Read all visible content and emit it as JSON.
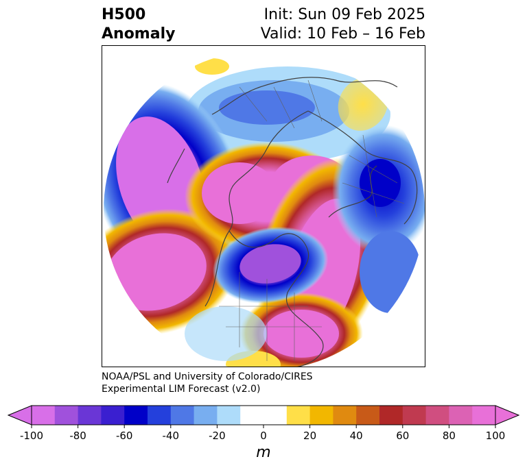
{
  "header": {
    "title_line1": "H500",
    "title_line2": "Anomaly",
    "init_text": "Init: Sun 09 Feb 2025",
    "valid_text": "Valid: 10 Feb – 16 Feb"
  },
  "credit": {
    "line1": "NOAA/PSL and University of Colorado/CIRES",
    "line2": "Experimental LIM Forecast (v2.0)"
  },
  "colorbar": {
    "unit": "m",
    "ticks": [
      "-100",
      "-80",
      "-60",
      "-40",
      "-20",
      "0",
      "20",
      "40",
      "60",
      "80",
      "100"
    ],
    "colors": [
      "#d86fe8",
      "#a051dc",
      "#6a36d6",
      "#3a1fd0",
      "#0000c8",
      "#2440dc",
      "#4f78e6",
      "#78aef0",
      "#aedcfa",
      "#ffffff",
      "#ffffff",
      "#ffdf48",
      "#f2b700",
      "#e08a10",
      "#c85a18",
      "#b02828",
      "#c03a50",
      "#d04e80",
      "#dc62b4",
      "#e870d8"
    ],
    "under_color": "#d86fe8",
    "over_color": "#e870d8"
  },
  "map": {
    "projection": "north polar stereographic",
    "anomaly_centers": [
      {
        "region": "North Pacific",
        "sign": "negative"
      },
      {
        "region": "Canadian Arctic",
        "sign": "positive"
      },
      {
        "region": "Eastern North Atlantic",
        "sign": "positive"
      },
      {
        "region": "Central Canada",
        "sign": "negative"
      },
      {
        "region": "Eastern Europe",
        "sign": "negative"
      },
      {
        "region": "Northern Siberia",
        "sign": "positive"
      }
    ]
  }
}
